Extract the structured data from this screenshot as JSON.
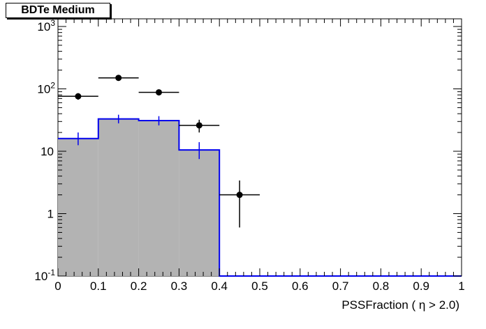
{
  "chart_data": {
    "type": "histogram",
    "title": "BDTe Medium",
    "xlabel": "PSSFraction ( η > 2.0)",
    "ylabel": "",
    "xlim": [
      0,
      1
    ],
    "ylim": [
      0.1,
      1000
    ],
    "yscale": "log",
    "x_tick_labels": [
      "0",
      "0.1",
      "0.2",
      "0.3",
      "0.4",
      "0.5",
      "0.6",
      "0.7",
      "0.8",
      "0.9",
      "1"
    ],
    "y_tick_labels": [
      {
        "value": 0.1,
        "base": "10",
        "exp": "-1"
      },
      {
        "value": 1,
        "base": "1",
        "exp": ""
      },
      {
        "value": 10,
        "base": "10",
        "exp": ""
      },
      {
        "value": 100,
        "base": "10",
        "exp": "2"
      },
      {
        "value": 1000,
        "base": "10",
        "exp": "3"
      }
    ],
    "bin_edges": [
      0,
      0.1,
      0.2,
      0.3,
      0.4,
      0.5,
      0.6,
      0.7,
      0.8,
      0.9,
      1.0
    ],
    "series": [
      {
        "style": "filled-histogram",
        "fill_color": "#b3b3b3",
        "line_color": "#0000ee",
        "values": [
          16,
          33,
          31,
          10.5,
          0,
          0,
          0,
          0,
          0,
          0
        ],
        "errors_low": [
          3.5,
          5,
          5,
          3,
          0,
          0,
          0,
          0,
          0,
          0
        ],
        "errors_high": [
          4,
          5.5,
          5.5,
          3.5,
          0,
          0,
          0,
          0,
          0,
          0
        ]
      },
      {
        "style": "points-with-errors",
        "marker_color": "#000000",
        "x": [
          0.05,
          0.15,
          0.25,
          0.35,
          0.45
        ],
        "y": [
          76,
          150,
          88,
          26,
          2
        ],
        "y_low": [
          67,
          138,
          79,
          20,
          0.6
        ],
        "y_high": [
          85,
          162,
          97,
          32,
          3.4
        ]
      }
    ]
  }
}
